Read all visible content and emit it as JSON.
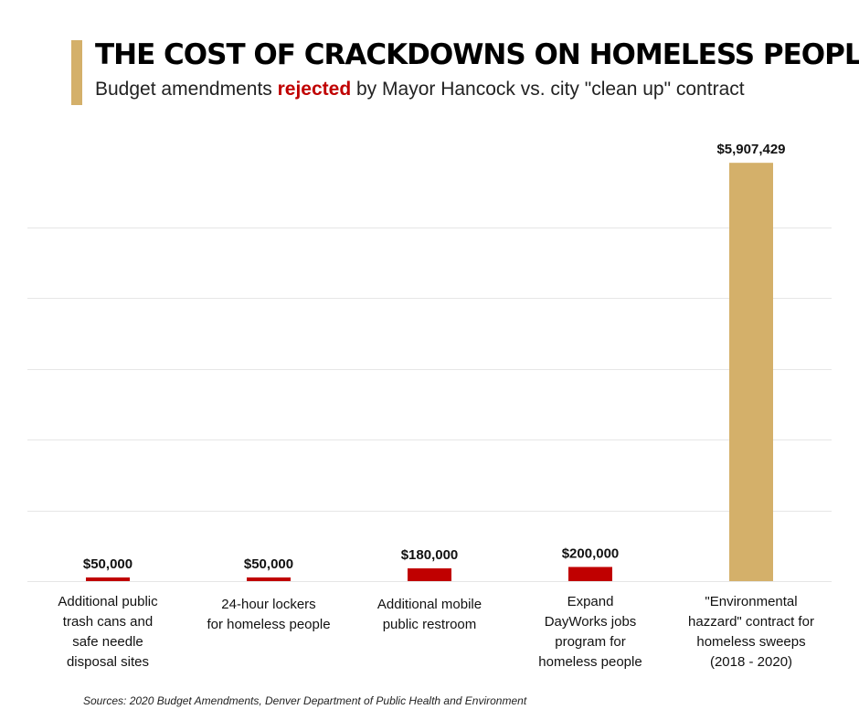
{
  "header": {
    "title": "THE COST OF CRACKDOWNS ON HOMELESS PEOPLE",
    "subtitle_before": "Budget amendments ",
    "subtitle_highlight": "rejected",
    "subtitle_after": " by Mayor Hancock vs. city \"clean up\" contract"
  },
  "colors": {
    "accent": "#d4b06a",
    "rejected": "#c00000",
    "contract": "#d4b06a",
    "gridline": "#e6e6e6"
  },
  "chart_data": {
    "type": "bar",
    "title": "THE COST OF CRACKDOWNS ON HOMELESS PEOPLE",
    "subtitle": "Budget amendments rejected by Mayor Hancock vs. city \"clean up\" contract",
    "categories": [
      "Additional public trash cans and safe needle disposal sites",
      "24-hour lockers for homeless people",
      "Additional mobile public restroom",
      "Expand DayWorks jobs program for homeless people",
      "\"Environmental hazzard\" contract for homeless sweeps (2018 - 2020)"
    ],
    "category_lines": [
      [
        "Additional public",
        "trash cans and",
        "safe needle",
        "disposal sites"
      ],
      [
        "24-hour lockers",
        "for homeless people"
      ],
      [
        "Additional mobile",
        "public restroom"
      ],
      [
        "Expand",
        "DayWorks jobs",
        "program for",
        "homeless people"
      ],
      [
        "\"Environmental",
        "hazzard\" contract for",
        "homeless sweeps",
        "(2018 - 2020)"
      ]
    ],
    "values": [
      50000,
      50000,
      180000,
      200000,
      5907429
    ],
    "value_labels": [
      "$50,000",
      "$50,000",
      "$180,000",
      "$200,000",
      "$5,907,429"
    ],
    "groups": [
      "rejected",
      "rejected",
      "rejected",
      "rejected",
      "contract"
    ],
    "ylim": [
      0,
      6000000
    ],
    "grid_step": 1000000,
    "grid": true,
    "xlabel": "",
    "ylabel": ""
  },
  "source": "Sources: 2020 Budget Amendments, Denver Department of Public Health and Environment"
}
